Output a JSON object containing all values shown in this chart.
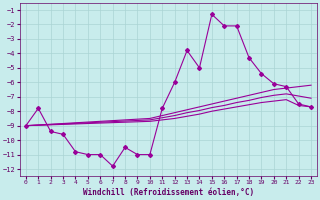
{
  "xlabel": "Windchill (Refroidissement éolien,°C)",
  "background_color": "#c8ecec",
  "grid_color": "#aad4d4",
  "line_color": "#990099",
  "x_data": [
    0,
    1,
    2,
    3,
    4,
    5,
    6,
    7,
    8,
    9,
    10,
    11,
    12,
    13,
    14,
    15,
    16,
    17,
    18,
    19,
    20,
    21,
    22,
    23
  ],
  "y_main": [
    -9.0,
    -7.8,
    -9.4,
    -9.6,
    -10.8,
    -11.0,
    -11.0,
    -11.8,
    -10.5,
    -11.0,
    -11.0,
    -7.8,
    -6.0,
    -3.8,
    -5.0,
    -1.3,
    -2.1,
    -2.1,
    -4.3,
    -5.4,
    -6.1,
    -6.3,
    -7.5,
    -7.7
  ],
  "y_reg1": [
    -9.0,
    -8.95,
    -8.9,
    -8.85,
    -8.8,
    -8.75,
    -8.7,
    -8.65,
    -8.6,
    -8.55,
    -8.5,
    -8.3,
    -8.1,
    -7.9,
    -7.7,
    -7.5,
    -7.3,
    -7.1,
    -6.9,
    -6.7,
    -6.5,
    -6.4,
    -6.3,
    -6.2
  ],
  "y_reg2": [
    -9.0,
    -8.97,
    -8.94,
    -8.91,
    -8.88,
    -8.85,
    -8.82,
    -8.79,
    -8.76,
    -8.73,
    -8.7,
    -8.6,
    -8.5,
    -8.35,
    -8.2,
    -8.0,
    -7.85,
    -7.7,
    -7.55,
    -7.4,
    -7.3,
    -7.2,
    -7.6,
    -7.7
  ],
  "y_reg3": [
    -9.0,
    -8.96,
    -8.92,
    -8.88,
    -8.84,
    -8.8,
    -8.76,
    -8.72,
    -8.68,
    -8.64,
    -8.6,
    -8.45,
    -8.3,
    -8.1,
    -7.95,
    -7.75,
    -7.6,
    -7.4,
    -7.25,
    -7.05,
    -6.9,
    -6.8,
    -6.95,
    -7.1
  ],
  "ylim": [
    -12.5,
    -0.5
  ],
  "xlim": [
    -0.5,
    23.5
  ],
  "yticks": [
    -12,
    -11,
    -10,
    -9,
    -8,
    -7,
    -6,
    -5,
    -4,
    -3,
    -2,
    -1
  ],
  "xticks": [
    0,
    1,
    2,
    3,
    4,
    5,
    6,
    7,
    8,
    9,
    10,
    11,
    12,
    13,
    14,
    15,
    16,
    17,
    18,
    19,
    20,
    21,
    22,
    23
  ]
}
